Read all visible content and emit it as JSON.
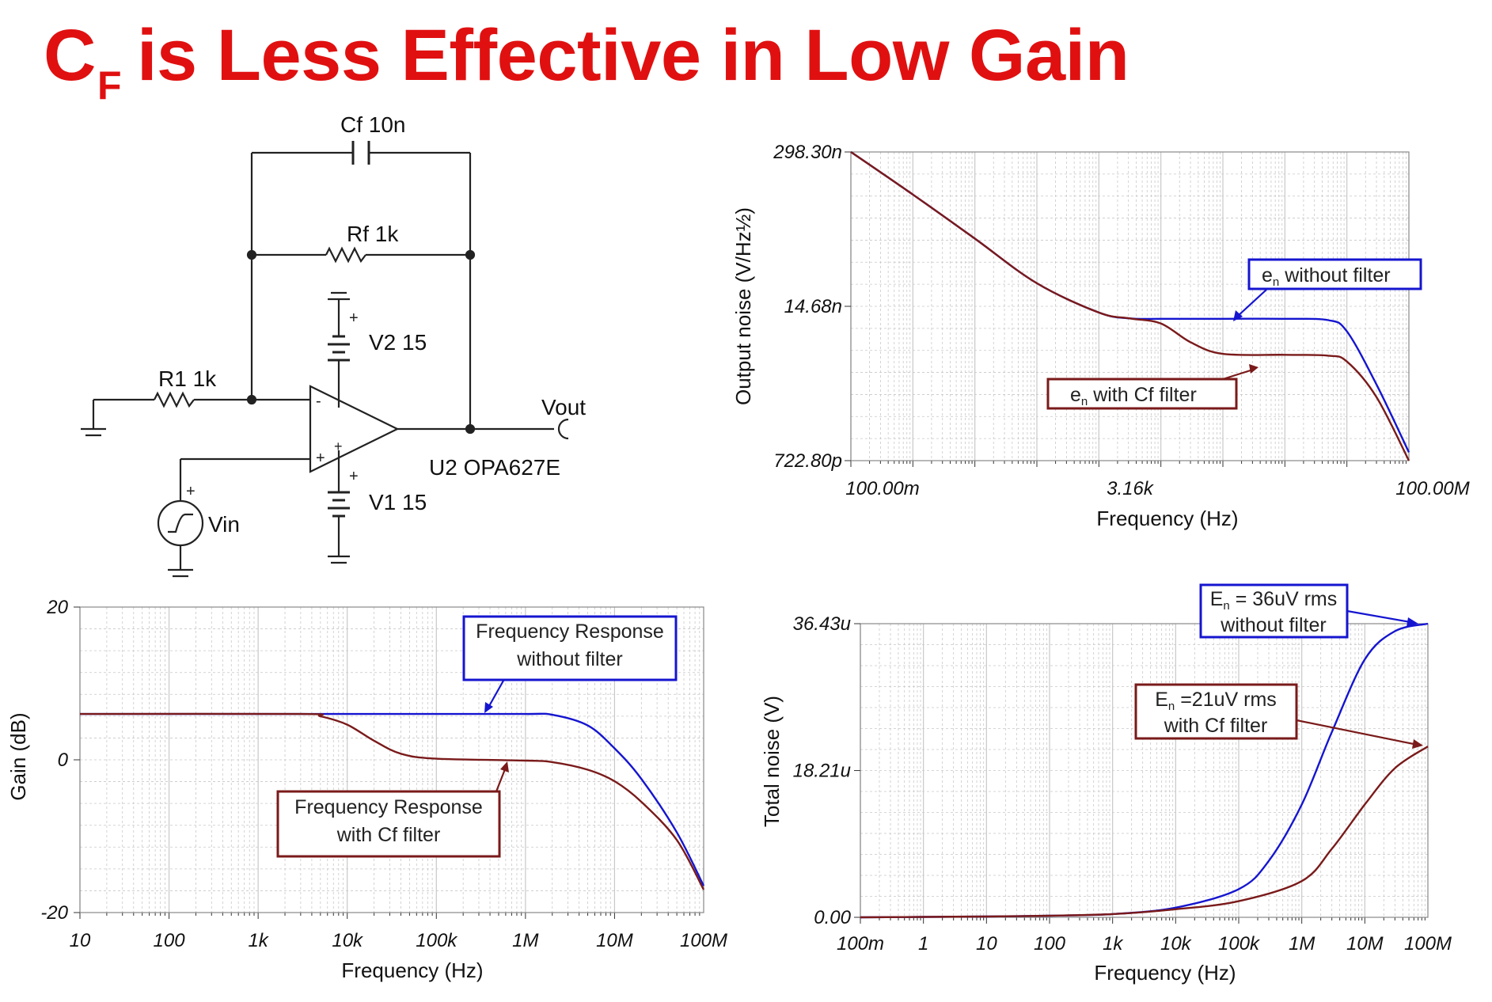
{
  "title": {
    "main": "C",
    "subscript": "F",
    "rest": "is Less Effective in Low Gain"
  },
  "colors": {
    "title": "#e01010",
    "without_filter": "#1515d0",
    "with_filter": "#7a1a1a",
    "grid": "#c8c8c8"
  },
  "circuit": {
    "labels": {
      "cf": "Cf 10n",
      "rf": "Rf 1k",
      "r1": "R1 1k",
      "v2": "V2 15",
      "v1": "V1 15",
      "vout": "Vout",
      "opamp": "U2 OPA627E",
      "vin": "Vin",
      "plus": "+",
      "minus": "-"
    }
  },
  "chart_data": [
    {
      "id": "noise-density",
      "type": "line",
      "xlabel": "Frequency (Hz)",
      "ylabel": "Output noise (V/Hz½)",
      "x_scale": "log",
      "y_scale": "log",
      "xlim": [
        0.1,
        100000000
      ],
      "ylim": [
        7.228e-10,
        2.983e-07
      ],
      "x_ticks": [
        {
          "v": 0.1,
          "label": "100.00m"
        },
        {
          "v": 3160,
          "label": "3.16k"
        },
        {
          "v": 100000000,
          "label": "100.00M"
        }
      ],
      "y_ticks": [
        {
          "v": 2.983e-07,
          "label": "298.30n"
        },
        {
          "v": 1.468e-08,
          "label": "14.68n"
        },
        {
          "v": 7.228e-10,
          "label": "722.80p"
        }
      ],
      "series": [
        {
          "key": "without",
          "color": "#1515d0",
          "points": [
            [
              0.1,
              2.983e-07
            ],
            [
              1,
              1.3e-07
            ],
            [
              10,
              5.5e-08
            ],
            [
              100,
              2.3e-08
            ],
            [
              1000,
              1.3e-08
            ],
            [
              3160,
              1.16e-08
            ],
            [
              10000,
              1.15e-08
            ],
            [
              100000,
              1.15e-08
            ],
            [
              1000000,
              1.15e-08
            ],
            [
              5000000,
              1.12e-08
            ],
            [
              10000000,
              9e-09
            ],
            [
              30000000,
              3.2e-09
            ],
            [
              100000000,
              8.5e-10
            ]
          ]
        },
        {
          "key": "with",
          "color": "#7a1a1a",
          "points": [
            [
              0.1,
              2.983e-07
            ],
            [
              1,
              1.3e-07
            ],
            [
              10,
              5.5e-08
            ],
            [
              100,
              2.3e-08
            ],
            [
              1000,
              1.3e-08
            ],
            [
              3160,
              1.16e-08
            ],
            [
              10000,
              1.05e-08
            ],
            [
              30000,
              7.3e-09
            ],
            [
              100000,
              5.8e-09
            ],
            [
              1000000,
              5.7e-09
            ],
            [
              5000000,
              5.6e-09
            ],
            [
              10000000,
              5e-09
            ],
            [
              30000000,
              2.5e-09
            ],
            [
              100000000,
              7.228e-10
            ]
          ]
        }
      ],
      "annotations": [
        {
          "main": "e",
          "sub": "n",
          "rest": " without filter",
          "color": "#1515d0"
        },
        {
          "main": "e",
          "sub": "n",
          "rest": " with Cf filter",
          "color": "#7a1a1a"
        }
      ]
    },
    {
      "id": "gain",
      "type": "line",
      "xlabel": "Frequency (Hz)",
      "ylabel": "Gain (dB)",
      "x_scale": "log",
      "xlim": [
        10,
        100000000
      ],
      "ylim": [
        -20,
        20
      ],
      "x_ticks": [
        {
          "v": 10,
          "label": "10"
        },
        {
          "v": 100,
          "label": "100"
        },
        {
          "v": 1000,
          "label": "1k"
        },
        {
          "v": 10000,
          "label": "10k"
        },
        {
          "v": 100000,
          "label": "100k"
        },
        {
          "v": 1000000,
          "label": "1M"
        },
        {
          "v": 10000000,
          "label": "10M"
        },
        {
          "v": 100000000,
          "label": "100M"
        }
      ],
      "y_ticks": [
        {
          "v": 20,
          "label": "20"
        },
        {
          "v": 0,
          "label": "0"
        },
        {
          "v": -20,
          "label": "-20"
        }
      ],
      "series": [
        {
          "key": "without",
          "color": "#1515d0",
          "points": [
            [
              10,
              6
            ],
            [
              1000,
              6
            ],
            [
              100000,
              6
            ],
            [
              1000000,
              6
            ],
            [
              2000000,
              5.9
            ],
            [
              5000000,
              4.5
            ],
            [
              10000000,
              1.5
            ],
            [
              20000000,
              -2.5
            ],
            [
              50000000,
              -9.5
            ],
            [
              100000000,
              -16.5
            ]
          ]
        },
        {
          "key": "with",
          "color": "#7a1a1a",
          "points": [
            [
              10,
              6
            ],
            [
              3000,
              6
            ],
            [
              5000,
              5.7
            ],
            [
              10000,
              4.6
            ],
            [
              20000,
              2.5
            ],
            [
              40000,
              0.8
            ],
            [
              100000,
              0.15
            ],
            [
              1000000,
              -0.1
            ],
            [
              2000000,
              -0.3
            ],
            [
              5000000,
              -1.3
            ],
            [
              10000000,
              -2.8
            ],
            [
              20000000,
              -5.5
            ],
            [
              50000000,
              -10.5
            ],
            [
              100000000,
              -17
            ]
          ]
        }
      ],
      "annotations": [
        {
          "line1": "Frequency Response",
          "line2": "without filter",
          "color": "#1515d0"
        },
        {
          "line1": "Frequency Response",
          "line2": "with Cf filter",
          "color": "#7a1a1a"
        }
      ]
    },
    {
      "id": "total-noise",
      "type": "line",
      "xlabel": "Frequency (Hz)",
      "ylabel": "Total noise (V)",
      "x_scale": "log",
      "xlim": [
        0.1,
        100000000
      ],
      "ylim": [
        0,
        3.643e-05
      ],
      "x_ticks": [
        {
          "v": 0.1,
          "label": "100m"
        },
        {
          "v": 1,
          "label": "1"
        },
        {
          "v": 10,
          "label": "10"
        },
        {
          "v": 100,
          "label": "100"
        },
        {
          "v": 1000,
          "label": "1k"
        },
        {
          "v": 10000,
          "label": "10k"
        },
        {
          "v": 100000,
          "label": "100k"
        },
        {
          "v": 1000000,
          "label": "1M"
        },
        {
          "v": 10000000,
          "label": "10M"
        },
        {
          "v": 100000000,
          "label": "100M"
        }
      ],
      "y_ticks": [
        {
          "v": 3.643e-05,
          "label": "36.43u"
        },
        {
          "v": 1.821e-05,
          "label": "18.21u"
        },
        {
          "v": 0,
          "label": "0.00"
        }
      ],
      "series": [
        {
          "key": "without",
          "color": "#1515d0",
          "points": [
            [
              0.1,
              0
            ],
            [
              1,
              5e-08
            ],
            [
              10,
              1e-07
            ],
            [
              100,
              2e-07
            ],
            [
              1000,
              4e-07
            ],
            [
              10000,
              1.2e-06
            ],
            [
              100000,
              3.5e-06
            ],
            [
              300000,
              7e-06
            ],
            [
              1000000,
              1.4e-05
            ],
            [
              3000000,
              2.3e-05
            ],
            [
              10000000,
              3.2e-05
            ],
            [
              30000000,
              3.55e-05
            ],
            [
              100000000,
              3.643e-05
            ]
          ]
        },
        {
          "key": "with",
          "color": "#7a1a1a",
          "points": [
            [
              0.1,
              0
            ],
            [
              1,
              5e-08
            ],
            [
              10,
              1e-07
            ],
            [
              100,
              2e-07
            ],
            [
              1000,
              4e-07
            ],
            [
              10000,
              1e-06
            ],
            [
              100000,
              2e-06
            ],
            [
              1000000,
              4.5e-06
            ],
            [
              3000000,
              8.5e-06
            ],
            [
              10000000,
              1.4e-05
            ],
            [
              30000000,
              1.85e-05
            ],
            [
              100000000,
              2.12e-05
            ]
          ]
        }
      ],
      "annotations": [
        {
          "l1main": "E",
          "l1sub": "n",
          "l1rest": " = 36uV rms",
          "line2": "without filter",
          "color": "#1515d0"
        },
        {
          "l1main": "E",
          "l1sub": "n",
          "l1rest": " =21uV rms",
          "line2": "with Cf filter",
          "color": "#7a1a1a"
        }
      ]
    }
  ]
}
